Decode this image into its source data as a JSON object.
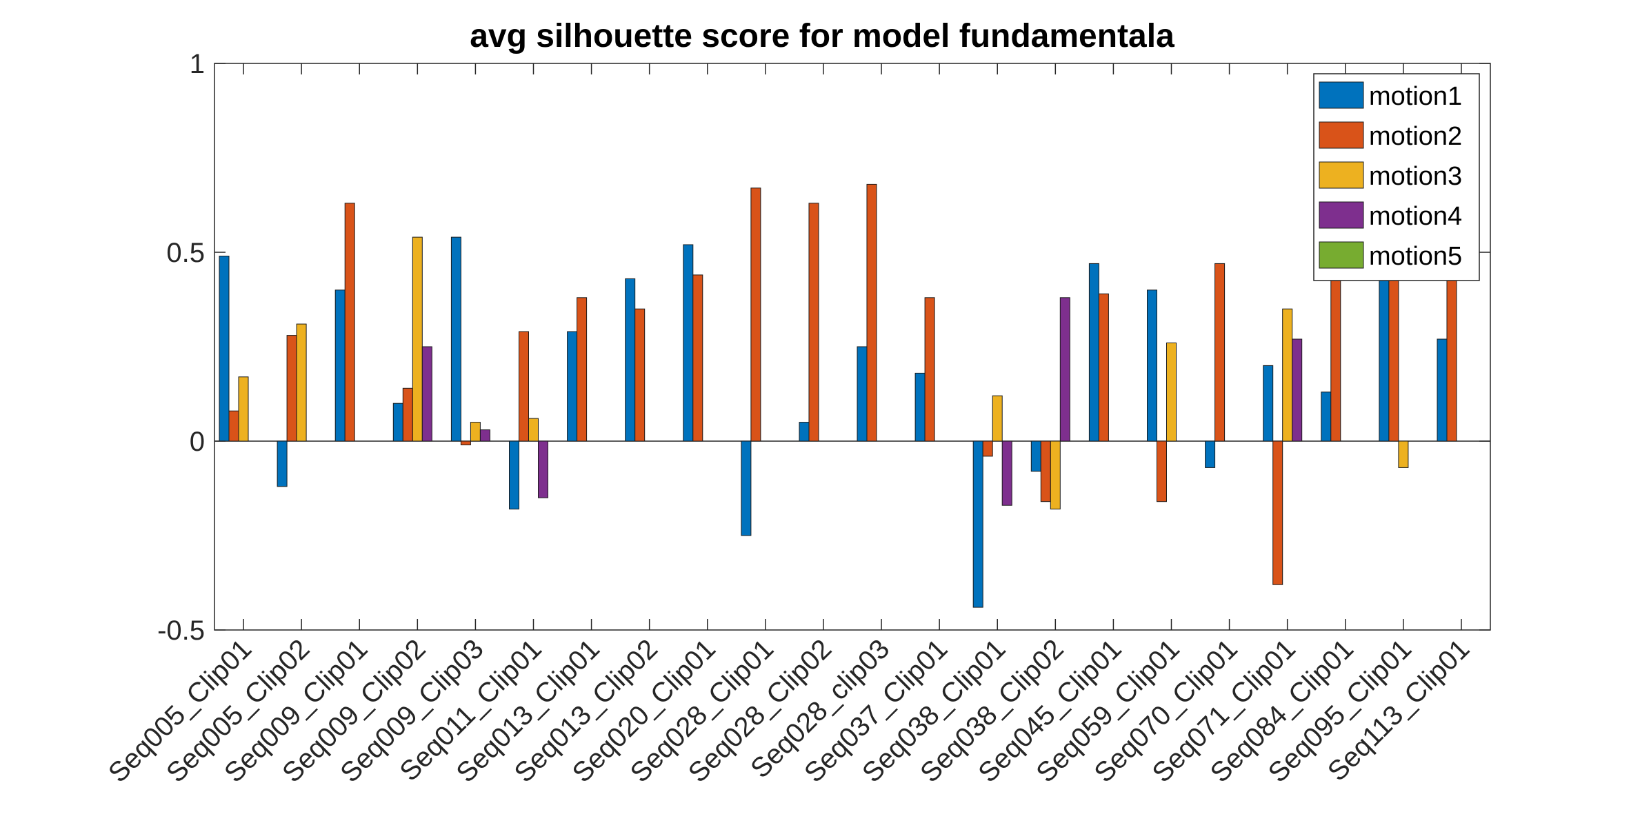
{
  "chart_data": {
    "type": "bar",
    "title": "avg silhouette score for model fundamentala",
    "xlabel": "",
    "ylabel": "",
    "ylim": [
      -0.5,
      1
    ],
    "yticks": [
      -0.5,
      0,
      0.5,
      1
    ],
    "ytick_labels": [
      "-0.5",
      "0",
      "0.5",
      "1"
    ],
    "grid": false,
    "legend_position": "top-right",
    "categories": [
      "Seq005_Clip01",
      "Seq005_Clip02",
      "Seq009_Clip01",
      "Seq009_Clip02",
      "Seq009_Clip03",
      "Seq011_Clip01",
      "Seq013_Clip01",
      "Seq013_Clip02",
      "Seq020_Clip01",
      "Seq028_Clip01",
      "Seq028_Clip02",
      "Seq028_clip03",
      "Seq037_Clip01",
      "Seq038_Clip01",
      "Seq038_Clip02",
      "Seq045_Clip01",
      "Seq059_Clip01",
      "Seq070_Clip01",
      "Seq071_Clip01",
      "Seq084_Clip01",
      "Seq095_Clip01",
      "Seq113_Clip01"
    ],
    "series": [
      {
        "name": "motion1",
        "color": "#0072BD",
        "values": [
          0.49,
          -0.12,
          0.4,
          0.1,
          0.54,
          -0.18,
          0.29,
          0.43,
          0.52,
          -0.25,
          0.05,
          0.25,
          0.18,
          -0.44,
          -0.08,
          0.47,
          0.4,
          -0.07,
          0.2,
          0.13,
          0.5,
          0.27
        ]
      },
      {
        "name": "motion2",
        "color": "#D95319",
        "values": [
          0.08,
          0.28,
          0.63,
          0.14,
          -0.01,
          0.29,
          0.38,
          0.35,
          0.44,
          0.67,
          0.63,
          0.68,
          0.38,
          -0.04,
          -0.16,
          0.39,
          -0.16,
          0.47,
          -0.38,
          0.5,
          0.5,
          0.5
        ]
      },
      {
        "name": "motion3",
        "color": "#EDB120",
        "values": [
          0.17,
          0.31,
          0,
          0.54,
          0.05,
          0.06,
          0,
          0,
          0,
          0,
          0,
          0,
          0,
          0.12,
          -0.18,
          0,
          0.26,
          0,
          0.35,
          0,
          -0.07,
          0
        ]
      },
      {
        "name": "motion4",
        "color": "#7E2F8E",
        "values": [
          0,
          0,
          0,
          0.25,
          0.03,
          -0.15,
          0,
          0,
          0,
          0,
          0,
          0,
          0,
          -0.17,
          0.38,
          0,
          0,
          0,
          0.27,
          0,
          0,
          0
        ]
      },
      {
        "name": "motion5",
        "color": "#77AC30",
        "values": [
          0,
          0,
          0,
          0,
          0,
          0,
          0,
          0,
          0,
          0,
          0,
          0,
          0,
          0,
          0,
          0,
          0,
          0,
          0,
          0,
          0,
          0
        ]
      }
    ]
  }
}
